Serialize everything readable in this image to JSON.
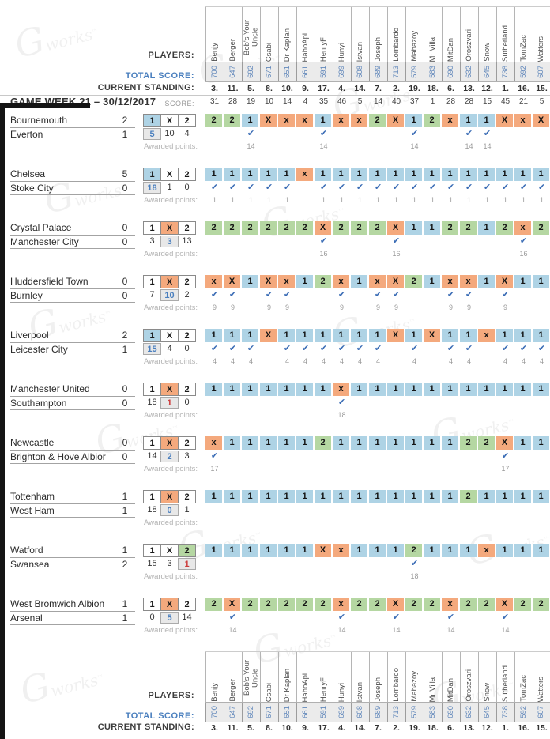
{
  "labels": {
    "players": "PLAYERS:",
    "total_score": "TOTAL SCORE:",
    "current_standing": "CURRENT STANDING:",
    "gameweek_title": "GAME WEEK 21 – 30/12/2017",
    "score": "SCORE:",
    "awarded_points": "Awarded points:",
    "checkmark": "✔"
  },
  "watermark": {
    "script_letter": "G",
    "word": "works",
    "tm": "™"
  },
  "options": [
    "1",
    "X",
    "2"
  ],
  "colors": {
    "pick1": "#aed3e5",
    "pickX": "#f4a97d",
    "pick2": "#b5d7a2",
    "blue_text": "#4a7fbe",
    "red_text": "#cc3b3b"
  },
  "players": [
    {
      "name": "Benjy",
      "total": 700,
      "standing": "3.",
      "gw_score": 31
    },
    {
      "name": "Berger",
      "total": 647,
      "standing": "11.",
      "gw_score": 28
    },
    {
      "name": "Bob's Your Uncle",
      "total": 692,
      "standing": "5.",
      "gw_score": 19
    },
    {
      "name": "Csabi",
      "total": 671,
      "standing": "8.",
      "gw_score": 10
    },
    {
      "name": "Dr Kaplan",
      "total": 651,
      "standing": "10.",
      "gw_score": 14
    },
    {
      "name": "HahoApi",
      "total": 661,
      "standing": "9.",
      "gw_score": 4
    },
    {
      "name": "HenryF",
      "total": 591,
      "standing": "17.",
      "gw_score": 35
    },
    {
      "name": "Hunyi",
      "total": 699,
      "standing": "4.",
      "gw_score": 46
    },
    {
      "name": "Istvan",
      "total": 608,
      "standing": "14.",
      "gw_score": 5
    },
    {
      "name": "Joseph",
      "total": 689,
      "standing": "7.",
      "gw_score": 14
    },
    {
      "name": "Lombardo",
      "total": 713,
      "standing": "2.",
      "gw_score": 40
    },
    {
      "name": "Mahazoy",
      "total": 579,
      "standing": "19.",
      "gw_score": 37
    },
    {
      "name": "Mr Villa",
      "total": 583,
      "standing": "18.",
      "gw_score": 1
    },
    {
      "name": "MitDan",
      "total": 690,
      "standing": "6.",
      "gw_score": 28
    },
    {
      "name": "Oroszvari",
      "total": 632,
      "standing": "13.",
      "gw_score": 28
    },
    {
      "name": "Snow",
      "total": 645,
      "standing": "12.",
      "gw_score": 15
    },
    {
      "name": "Sutherland",
      "total": 738,
      "standing": "1.",
      "gw_score": 45
    },
    {
      "name": "TomZac",
      "total": 592,
      "standing": "16.",
      "gw_score": 21
    },
    {
      "name": "Watters",
      "total": 607,
      "standing": "15.",
      "gw_score": 5
    }
  ],
  "matches": [
    {
      "home": "Bournemouth",
      "away": "Everton",
      "home_score": 2,
      "away_score": 1,
      "result": "1",
      "counts": [
        5,
        10,
        4
      ],
      "count_color": "blue",
      "predictions": [
        "2",
        "2",
        "1",
        "X",
        "x",
        "x",
        "1",
        "x",
        "x",
        "2",
        "X",
        "1",
        "2",
        "x",
        "1",
        "1",
        "X",
        "x",
        "X"
      ],
      "points": [
        null,
        null,
        14,
        null,
        null,
        null,
        14,
        null,
        null,
        null,
        null,
        14,
        null,
        null,
        14,
        14,
        null,
        null,
        null
      ]
    },
    {
      "home": "Chelsea",
      "away": "Stoke City",
      "home_score": 5,
      "away_score": 0,
      "result": "1",
      "counts": [
        18,
        1,
        0
      ],
      "count_color": "blue",
      "predictions": [
        "1",
        "1",
        "1",
        "1",
        "1",
        "x",
        "1",
        "1",
        "1",
        "1",
        "1",
        "1",
        "1",
        "1",
        "1",
        "1",
        "1",
        "1",
        "1"
      ],
      "points": [
        1,
        1,
        1,
        1,
        1,
        null,
        1,
        1,
        1,
        1,
        1,
        1,
        1,
        1,
        1,
        1,
        1,
        1,
        1
      ]
    },
    {
      "home": "Crystal Palace",
      "away": "Manchester City",
      "home_score": 0,
      "away_score": 0,
      "result": "X",
      "counts": [
        3,
        3,
        13
      ],
      "count_color": "blue",
      "predictions": [
        "2",
        "2",
        "2",
        "2",
        "2",
        "2",
        "X",
        "2",
        "2",
        "2",
        "X",
        "1",
        "1",
        "2",
        "2",
        "1",
        "2",
        "x",
        "2"
      ],
      "points": [
        null,
        null,
        null,
        null,
        null,
        null,
        16,
        null,
        null,
        null,
        16,
        null,
        null,
        null,
        null,
        null,
        null,
        16,
        null
      ]
    },
    {
      "home": "Huddersfield Town",
      "away": "Burnley",
      "home_score": 0,
      "away_score": 0,
      "result": "X",
      "counts": [
        7,
        10,
        2
      ],
      "count_color": "blue",
      "predictions": [
        "x",
        "X",
        "1",
        "X",
        "x",
        "1",
        "2",
        "x",
        "1",
        "x",
        "X",
        "2",
        "1",
        "x",
        "x",
        "1",
        "X",
        "1",
        "1"
      ],
      "points": [
        9,
        9,
        null,
        9,
        9,
        null,
        null,
        9,
        null,
        9,
        9,
        null,
        null,
        9,
        9,
        null,
        9,
        null,
        null
      ]
    },
    {
      "home": "Liverpool",
      "away": "Leicester City",
      "home_score": 2,
      "away_score": 1,
      "result": "1",
      "counts": [
        15,
        4,
        0
      ],
      "count_color": "blue",
      "predictions": [
        "1",
        "1",
        "1",
        "X",
        "1",
        "1",
        "1",
        "1",
        "1",
        "1",
        "X",
        "1",
        "X",
        "1",
        "1",
        "x",
        "1",
        "1",
        "1"
      ],
      "points": [
        4,
        4,
        4,
        null,
        4,
        4,
        4,
        4,
        4,
        4,
        null,
        4,
        null,
        4,
        4,
        null,
        4,
        4,
        4
      ]
    },
    {
      "home": "Manchester United",
      "away": "Southampton",
      "home_score": 0,
      "away_score": 0,
      "result": "X",
      "counts": [
        18,
        1,
        0
      ],
      "count_color": "red",
      "predictions": [
        "1",
        "1",
        "1",
        "1",
        "1",
        "1",
        "1",
        "x",
        "1",
        "1",
        "1",
        "1",
        "1",
        "1",
        "1",
        "1",
        "1",
        "1",
        "1"
      ],
      "points": [
        null,
        null,
        null,
        null,
        null,
        null,
        null,
        18,
        null,
        null,
        null,
        null,
        null,
        null,
        null,
        null,
        null,
        null,
        null
      ]
    },
    {
      "home": "Newcastle",
      "away": "Brighton & Hove Albior",
      "home_score": 0,
      "away_score": 0,
      "result": "X",
      "counts": [
        14,
        2,
        3
      ],
      "count_color": "blue",
      "predictions": [
        "x",
        "1",
        "1",
        "1",
        "1",
        "1",
        "2",
        "1",
        "1",
        "1",
        "1",
        "1",
        "1",
        "1",
        "2",
        "2",
        "X",
        "1",
        "1"
      ],
      "points": [
        17,
        null,
        null,
        null,
        null,
        null,
        null,
        null,
        null,
        null,
        null,
        null,
        null,
        null,
        null,
        null,
        17,
        null,
        null
      ]
    },
    {
      "home": "Tottenham",
      "away": "West Ham",
      "home_score": 1,
      "away_score": 1,
      "result": "X",
      "counts": [
        18,
        0,
        1
      ],
      "count_color": "blue",
      "predictions": [
        "1",
        "1",
        "1",
        "1",
        "1",
        "1",
        "1",
        "1",
        "1",
        "1",
        "1",
        "1",
        "1",
        "1",
        "2",
        "1",
        "1",
        "1",
        "1"
      ],
      "points": [
        null,
        null,
        null,
        null,
        null,
        null,
        null,
        null,
        null,
        null,
        null,
        null,
        null,
        null,
        null,
        null,
        null,
        null,
        null
      ]
    },
    {
      "home": "Watford",
      "away": "Swansea",
      "home_score": 1,
      "away_score": 2,
      "result": "2",
      "counts": [
        15,
        3,
        1
      ],
      "count_color": "red",
      "predictions": [
        "1",
        "1",
        "1",
        "1",
        "1",
        "1",
        "X",
        "x",
        "1",
        "1",
        "1",
        "2",
        "1",
        "1",
        "1",
        "x",
        "1",
        "1",
        "1"
      ],
      "points": [
        null,
        null,
        null,
        null,
        null,
        null,
        null,
        null,
        null,
        null,
        null,
        18,
        null,
        null,
        null,
        null,
        null,
        null,
        null
      ]
    },
    {
      "home": "West Bromwich Albion",
      "away": "Arsenal",
      "home_score": 1,
      "away_score": 1,
      "result": "X",
      "counts": [
        0,
        5,
        14
      ],
      "count_color": "blue",
      "predictions": [
        "2",
        "X",
        "2",
        "2",
        "2",
        "2",
        "2",
        "x",
        "2",
        "2",
        "X",
        "2",
        "2",
        "x",
        "2",
        "2",
        "X",
        "2",
        "2"
      ],
      "points": [
        null,
        14,
        null,
        null,
        null,
        null,
        null,
        14,
        null,
        null,
        14,
        null,
        null,
        14,
        null,
        null,
        14,
        null,
        null
      ]
    }
  ]
}
